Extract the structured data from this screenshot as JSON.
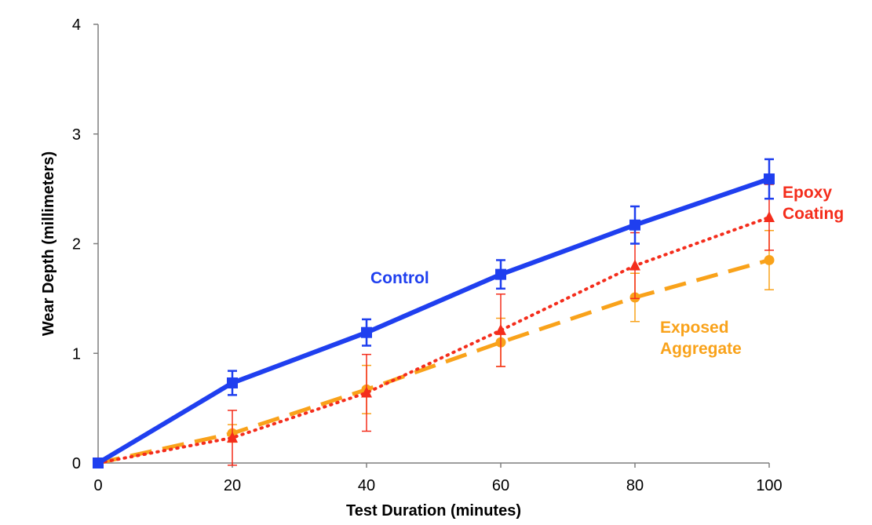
{
  "chart_data": {
    "type": "line",
    "title": "",
    "xlabel": "Test Duration (minutes)",
    "ylabel": "Wear Depth (millimeters)",
    "xlim": [
      0,
      100
    ],
    "ylim": [
      0,
      4
    ],
    "xticks": [
      0,
      20,
      40,
      60,
      80,
      100
    ],
    "yticks": [
      0,
      1,
      2,
      3,
      4
    ],
    "grid": false,
    "legend": "inline labels",
    "x": [
      0,
      20,
      40,
      60,
      80,
      100
    ],
    "series": [
      {
        "name": "Control",
        "label_lines": [
          "Control"
        ],
        "color": "#1f3fef",
        "line_style": "solid",
        "marker": "square",
        "values": [
          0,
          0.73,
          1.19,
          1.72,
          2.17,
          2.59
        ],
        "errors": [
          0,
          0.11,
          0.12,
          0.13,
          0.17,
          0.18
        ]
      },
      {
        "name": "Epoxy Coating",
        "label_lines": [
          "Epoxy",
          "Coating"
        ],
        "color": "#f42d1c",
        "line_style": "dotted",
        "marker": "triangle",
        "values": [
          0,
          0.23,
          0.64,
          1.21,
          1.8,
          2.24
        ],
        "errors": [
          0,
          0.25,
          0.35,
          0.33,
          0.3,
          0.3
        ]
      },
      {
        "name": "Exposed Aggregate",
        "label_lines": [
          "Exposed",
          "Aggregate"
        ],
        "color": "#f9a21a",
        "line_style": "dashed",
        "marker": "circle",
        "values": [
          0,
          0.27,
          0.67,
          1.1,
          1.51,
          1.85
        ],
        "errors": [
          0,
          0.08,
          0.22,
          0.22,
          0.22,
          0.27
        ]
      }
    ]
  }
}
